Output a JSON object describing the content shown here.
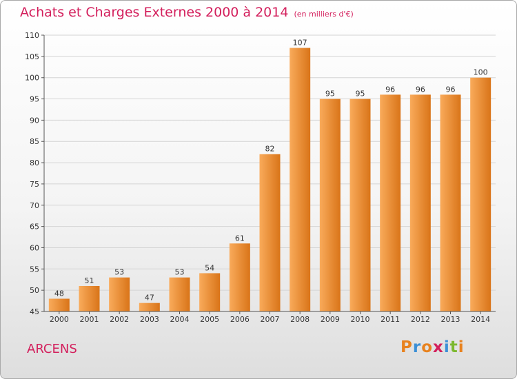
{
  "header": {
    "title": "Achats et Charges Externes 2000 à 2014",
    "unit": "(en milliers d'€)"
  },
  "footer": {
    "commune": "ARCENS",
    "logo": "Proxiti",
    "logo_colors": [
      "#e8821e",
      "#3b8fd6",
      "#e8821e",
      "#d31f5c",
      "#3b8fd6",
      "#7cb82f",
      "#e8821e"
    ]
  },
  "colors": {
    "bar_light": "#f9ab5b",
    "bar_dark": "#d97418",
    "title": "#d31f5c"
  },
  "chart_data": {
    "type": "bar",
    "title": "Achats et Charges Externes 2000 à 2014",
    "categories": [
      "2000",
      "2001",
      "2002",
      "2003",
      "2004",
      "2005",
      "2006",
      "2007",
      "2008",
      "2009",
      "2010",
      "2011",
      "2012",
      "2013",
      "2014"
    ],
    "values": [
      48,
      51,
      53,
      47,
      53,
      54,
      61,
      82,
      107,
      95,
      95,
      96,
      96,
      96,
      100
    ],
    "ylim": [
      45,
      110
    ],
    "yticks": [
      45,
      50,
      55,
      60,
      65,
      70,
      75,
      80,
      85,
      90,
      95,
      100,
      105,
      110
    ],
    "grid": true,
    "xlabel": "",
    "ylabel": ""
  }
}
